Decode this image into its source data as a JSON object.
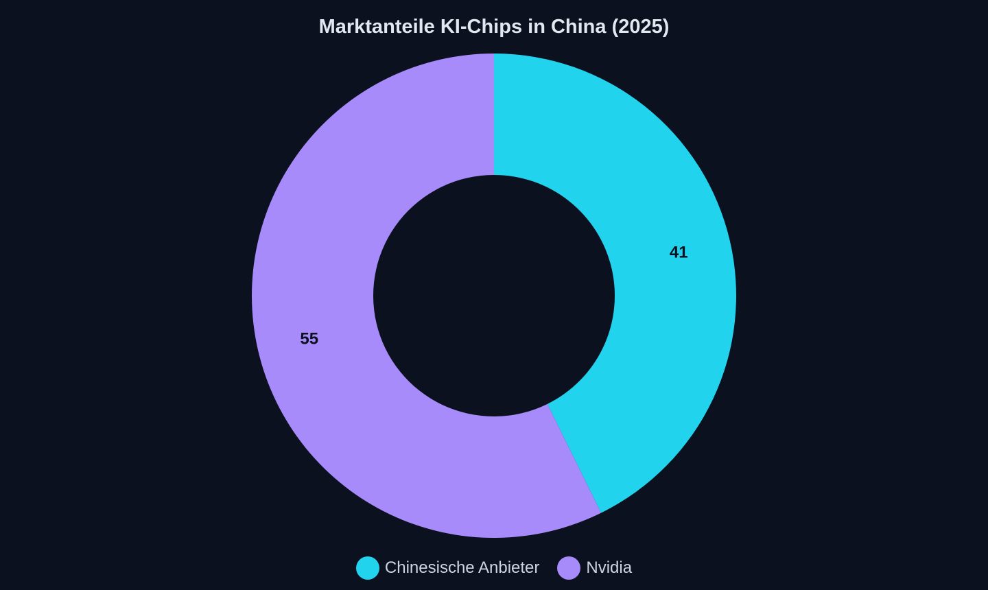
{
  "chart_data": {
    "type": "pie",
    "title": "Marktanteile KI-Chips in China (2025)",
    "donut": true,
    "start_angle_deg": 0,
    "direction": "clockwise",
    "slices": [
      {
        "label": "Chinesische Anbieter",
        "value": 41,
        "color": "#22d3ee"
      },
      {
        "label": "Nvidia",
        "value": 55,
        "color": "#a78bfa"
      }
    ],
    "legend_position": "bottom",
    "slice_label_color": "#0c1120"
  }
}
